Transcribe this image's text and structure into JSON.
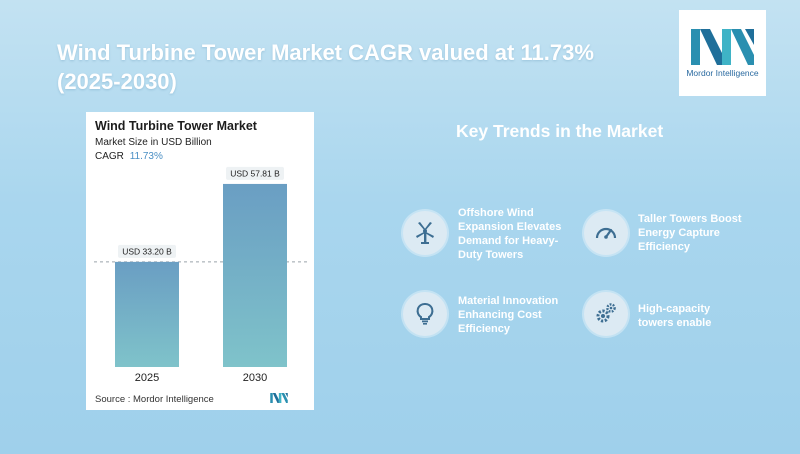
{
  "header": {
    "title_line1": "Wind Turbine Tower Market CAGR valued at 11.73%",
    "title_line2": "(2025-2030)"
  },
  "logo": {
    "text": "Mordor Intelligence",
    "icon": "mordor-intelligence-logo"
  },
  "chart_card": {
    "title": "Wind Turbine Tower Market",
    "subtitle": "Market Size in USD Billion",
    "cagr_label": "CAGR",
    "cagr_value": "11.73%",
    "source": "Source : Mordor Intelligence"
  },
  "chart_data": {
    "type": "bar",
    "title": "Wind Turbine Tower Market",
    "subtitle": "Market Size in USD Billion",
    "categories": [
      "2025",
      "2030"
    ],
    "values": [
      33.2,
      57.81
    ],
    "data_labels": [
      "USD 33.20 B",
      "USD 57.81 B"
    ],
    "ylim": [
      0,
      60
    ],
    "grid": false,
    "reference_line": {
      "value": 33.2,
      "style": "dashed"
    },
    "colors": {
      "bar_top": "#6a9ec3",
      "bar_bottom": "#7fc3ca"
    }
  },
  "trends": {
    "title": "Key Trends in the Market",
    "items": [
      {
        "icon": "wind-turbine-icon",
        "lines": [
          "Offshore Wind",
          "Expansion Elevates",
          "Demand for Heavy-",
          "Duty Towers"
        ]
      },
      {
        "icon": "speedometer-icon",
        "lines": [
          "Taller Towers Boost",
          "Energy Capture",
          "Efficiency"
        ]
      },
      {
        "icon": "lightbulb-icon",
        "lines": [
          "Material Innovation",
          "Enhancing Cost",
          "Efficiency"
        ]
      },
      {
        "icon": "gears-icon",
        "lines": [
          "High-capacity",
          "towers enable"
        ]
      }
    ]
  },
  "colors": {
    "accent": "#4a8fc4",
    "icon_bg": "#dceaf3",
    "icon_fg": "#3d6e92"
  }
}
